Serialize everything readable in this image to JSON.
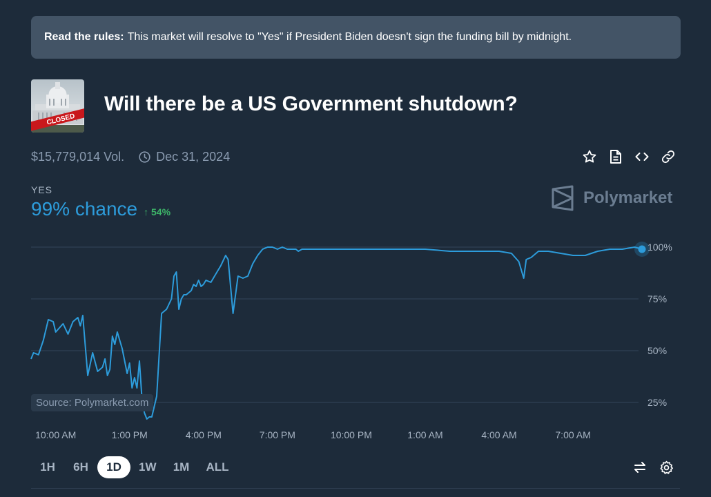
{
  "rules": {
    "label": "Read the rules:",
    "text": "This market will resolve to \"Yes\" if President Biden doesn't sign the funding bill by midnight."
  },
  "market": {
    "title": "Will there be a US Government shutdown?",
    "thumbnail_badge": "CLOSED",
    "volume": "$15,779,014 Vol.",
    "end_date": "Dec 31, 2024"
  },
  "actions": {
    "icons": [
      "star-icon",
      "document-icon",
      "embed-code-icon",
      "link-icon"
    ]
  },
  "outcome": {
    "label": "YES",
    "chance": "99% chance",
    "delta": "54%",
    "delta_arrow": "↑",
    "delta_color": "#3db468",
    "accent_color": "#2d9cdb"
  },
  "brand": {
    "name": "Polymarket"
  },
  "chart_data": {
    "type": "line",
    "x_labels": [
      "10:00 AM",
      "1:00 PM",
      "4:00 PM",
      "7:00 PM",
      "10:00 PM",
      "1:00 AM",
      "4:00 AM",
      "7:00 AM"
    ],
    "y_ticks": [
      "100%",
      "75%",
      "50%",
      "25%"
    ],
    "ylim": [
      0,
      100
    ],
    "source": "Source: Polymarket.com",
    "series": [
      {
        "color": "#2d9cdb",
        "x": [
          9.0,
          9.1,
          9.3,
          9.5,
          9.7,
          9.9,
          10.0,
          10.15,
          10.3,
          10.5,
          10.7,
          10.9,
          11.0,
          11.1,
          11.3,
          11.5,
          11.7,
          11.9,
          12.0,
          12.1,
          12.2,
          12.3,
          12.4,
          12.5,
          12.7,
          12.9,
          13.0,
          13.1,
          13.2,
          13.3,
          13.4,
          13.5,
          13.6,
          13.7,
          13.8,
          13.9,
          14.1,
          14.3,
          14.5,
          14.7,
          14.8,
          14.9,
          15.0,
          15.1,
          15.2,
          15.3,
          15.5,
          15.6,
          15.7,
          15.8,
          15.9,
          16.0,
          16.1,
          16.3,
          16.5,
          16.7,
          16.9,
          17.0,
          17.2,
          17.4,
          17.6,
          17.8,
          18.0,
          18.2,
          18.4,
          18.6,
          18.8,
          19.0,
          19.2,
          19.4,
          19.6,
          19.75,
          19.85,
          20.0,
          20.2,
          20.4,
          20.6,
          20.8,
          21.0,
          21.2,
          21.5,
          22.0,
          22.5,
          23.0,
          24.0,
          25.0,
          26.0,
          27.0,
          28.0,
          28.5,
          28.8,
          29.0,
          29.1,
          29.3,
          29.6,
          30.0,
          30.5,
          31.0,
          31.5,
          32.0,
          32.5,
          33.0,
          33.5,
          33.8
        ],
        "values": [
          46,
          49,
          48,
          55,
          65,
          64,
          59,
          61,
          63,
          58,
          64,
          66,
          62,
          67,
          38,
          49,
          40,
          42,
          46,
          38,
          41,
          57,
          53,
          59,
          51,
          39,
          44,
          32,
          37,
          32,
          45,
          27,
          20,
          17,
          18,
          18,
          28,
          68,
          70,
          75,
          86,
          88,
          70,
          75,
          77,
          77,
          79,
          82,
          81,
          84,
          81,
          82,
          84,
          83,
          87,
          91,
          96,
          94,
          68,
          86,
          85,
          86,
          92,
          96,
          99,
          100,
          100,
          99,
          100,
          99,
          99,
          99,
          98,
          99,
          99,
          99,
          99,
          99,
          99,
          99,
          99,
          99,
          99,
          99,
          99,
          99,
          98,
          98,
          98,
          97,
          93,
          85,
          94,
          95,
          98,
          98,
          97,
          96,
          96,
          98,
          99,
          99,
          100,
          99
        ]
      }
    ]
  },
  "ranges": {
    "items": [
      "1H",
      "6H",
      "1D",
      "1W",
      "1M",
      "ALL"
    ],
    "active": "1D"
  },
  "tools": {
    "icons": [
      "swap-arrows-icon",
      "gear-icon"
    ]
  }
}
